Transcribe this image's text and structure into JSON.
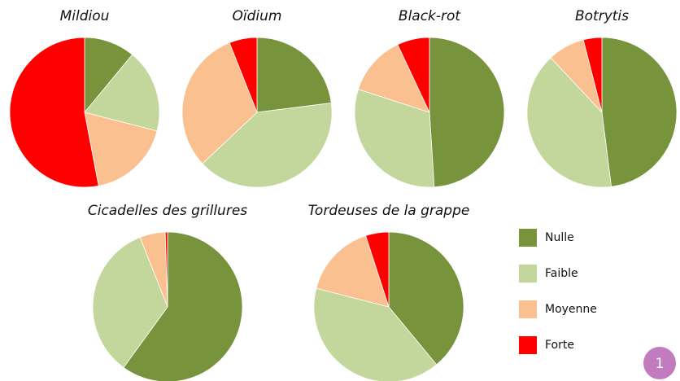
{
  "chart_data": [
    {
      "type": "pie",
      "title": "Mildiou",
      "categories": [
        "Nulle",
        "Faible",
        "Moyenne",
        "Forte"
      ],
      "values": [
        11,
        18,
        18,
        53
      ],
      "colors": [
        "#77933c",
        "#c3d69b",
        "#fac090",
        "#ff0000"
      ]
    },
    {
      "type": "pie",
      "title": "Oïdium",
      "categories": [
        "Nulle",
        "Faible",
        "Moyenne",
        "Forte"
      ],
      "values": [
        23,
        40,
        31,
        6
      ],
      "colors": [
        "#77933c",
        "#c3d69b",
        "#fac090",
        "#ff0000"
      ]
    },
    {
      "type": "pie",
      "title": "Black-rot",
      "categories": [
        "Nulle",
        "Faible",
        "Moyenne",
        "Forte"
      ],
      "values": [
        49,
        31,
        13,
        7
      ],
      "colors": [
        "#77933c",
        "#c3d69b",
        "#fac090",
        "#ff0000"
      ]
    },
    {
      "type": "pie",
      "title": "Botrytis",
      "categories": [
        "Nulle",
        "Faible",
        "Moyenne",
        "Forte"
      ],
      "values": [
        48,
        40,
        8,
        4
      ],
      "colors": [
        "#77933c",
        "#c3d69b",
        "#fac090",
        "#ff0000"
      ]
    },
    {
      "type": "pie",
      "title": "Cicadelles des grillures",
      "categories": [
        "Nulle",
        "Faible",
        "Moyenne",
        "Forte"
      ],
      "values": [
        60,
        34,
        5.5,
        0.5
      ],
      "colors": [
        "#77933c",
        "#c3d69b",
        "#fac090",
        "#ff0000"
      ]
    },
    {
      "type": "pie",
      "title": "Tordeuses de la grappe",
      "categories": [
        "Nulle",
        "Faible",
        "Moyenne",
        "Forte"
      ],
      "values": [
        39,
        40,
        16,
        5
      ],
      "colors": [
        "#77933c",
        "#c3d69b",
        "#fac090",
        "#ff0000"
      ]
    }
  ],
  "badge": "1"
}
